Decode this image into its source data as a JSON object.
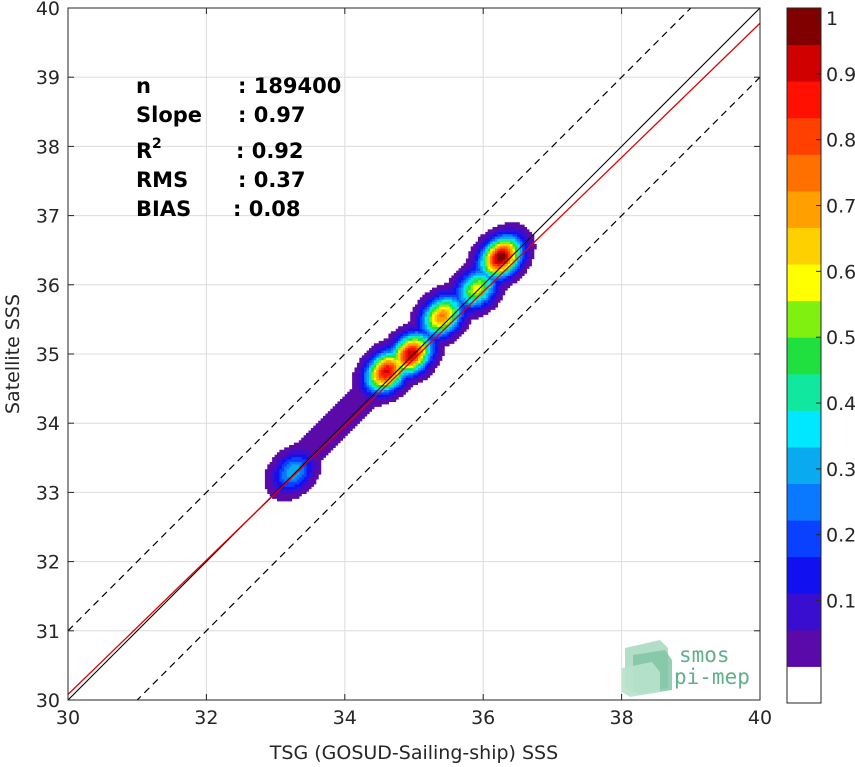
{
  "chart_data": {
    "type": "contour-density-scatter",
    "xlabel": "TSG (GOSUD-Sailing-ship) SSS",
    "ylabel": "Satellite SSS",
    "xlim": [
      30,
      40
    ],
    "ylim": [
      30,
      40
    ],
    "x_ticks": [
      "30",
      "32",
      "34",
      "36",
      "38",
      "40"
    ],
    "y_ticks": [
      "30",
      "31",
      "32",
      "33",
      "34",
      "35",
      "36",
      "37",
      "38",
      "39",
      "40"
    ],
    "grid": true,
    "stats": [
      {
        "label": "n",
        "value": ": 189400"
      },
      {
        "label": "Slope",
        "value": ": 0.97"
      },
      {
        "label": "R",
        "sup": "2",
        "value": ": 0.92"
      },
      {
        "label": "RMS",
        "value": ": 0.37"
      },
      {
        "label": "BIAS",
        "value": ": 0.08"
      }
    ],
    "lines": {
      "identity": {
        "slope": 1,
        "intercept": 0,
        "color": "#000000"
      },
      "fit": {
        "slope": 0.97,
        "intercept": 1.08,
        "color": "#e00000"
      },
      "bounds": {
        "offset": 1,
        "style": "dashed",
        "color": "#000000"
      }
    },
    "density_peaks": [
      {
        "x": 33.25,
        "y": 33.3,
        "relative_density": 0.35
      },
      {
        "x": 34.6,
        "y": 34.75,
        "relative_density": 0.92
      },
      {
        "x": 34.95,
        "y": 35.0,
        "relative_density": 0.95
      },
      {
        "x": 35.4,
        "y": 35.55,
        "relative_density": 0.75
      },
      {
        "x": 35.9,
        "y": 35.95,
        "relative_density": 0.6
      },
      {
        "x": 36.25,
        "y": 36.4,
        "relative_density": 1.0
      }
    ],
    "colorbar": {
      "range": [
        0,
        1
      ],
      "ticks": [
        "0.1",
        "0.2",
        "0.3",
        "0.4",
        "0.5",
        "0.6",
        "0.7",
        "0.8",
        "0.9",
        "1"
      ],
      "colors": [
        "#ffffff",
        "#5a0aa8",
        "#3a0ed0",
        "#1010f0",
        "#0a40ff",
        "#0a78ff",
        "#0aaaf0",
        "#00e8ff",
        "#10e8a0",
        "#20e040",
        "#80f010",
        "#ffff00",
        "#ffd000",
        "#ffa000",
        "#ff7000",
        "#ff4000",
        "#ff1000",
        "#d00000",
        "#800000"
      ]
    },
    "logo": {
      "line1": "smos",
      "line2": "pi-mep"
    }
  }
}
